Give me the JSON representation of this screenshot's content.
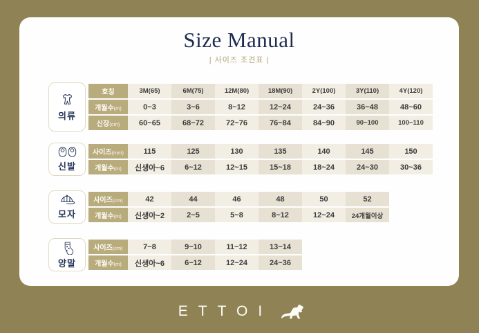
{
  "title": "Size Manual",
  "subtitle": "| 사이즈 조견표 |",
  "brand": {
    "logo_text": "ETTOI",
    "logo_icon": "horse-icon"
  },
  "colors": {
    "background": "#8f8254",
    "card": "#fefefe",
    "header_cell": "#b8ab7c",
    "cell_light": "#f2eee4",
    "cell_dark": "#e7e1d3",
    "title_navy": "#1f2c50",
    "subtitle_gold": "#b2a375"
  },
  "sections": [
    {
      "id": "clothing",
      "label": "의류",
      "icon": "onesie-icon",
      "rows": [
        {
          "header": "호칭",
          "unit": "",
          "values": [
            "3M(65)",
            "6M(75)",
            "12M(80)",
            "18M(90)",
            "2Y(100)",
            "3Y(110)",
            "4Y(120)"
          ]
        },
        {
          "header": "개월수",
          "unit": "(m)",
          "values": [
            "0~3",
            "3~6",
            "8~12",
            "12~24",
            "24~36",
            "36~48",
            "48~60"
          ]
        },
        {
          "header": "신장",
          "unit": "(cm)",
          "values": [
            "60~65",
            "68~72",
            "72~76",
            "76~84",
            "84~90",
            "90~100",
            "100~110"
          ]
        }
      ]
    },
    {
      "id": "shoes",
      "label": "신발",
      "icon": "baby-shoes-icon",
      "rows": [
        {
          "header": "사이즈",
          "unit": "(mm)",
          "values": [
            "115",
            "125",
            "130",
            "135",
            "140",
            "145",
            "150"
          ]
        },
        {
          "header": "개월수",
          "unit": "(m)",
          "values": [
            "신생아~6",
            "6~12",
            "12~15",
            "15~18",
            "18~24",
            "24~30",
            "30~36"
          ]
        }
      ]
    },
    {
      "id": "hats",
      "label": "모자",
      "icon": "cap-icon",
      "rows": [
        {
          "header": "사이즈",
          "unit": "(cm)",
          "values": [
            "42",
            "44",
            "46",
            "48",
            "50",
            "52"
          ]
        },
        {
          "header": "개월수",
          "unit": "(m)",
          "values": [
            "신생아~2",
            "2~5",
            "5~8",
            "8~12",
            "12~24",
            "24개월이상"
          ]
        }
      ]
    },
    {
      "id": "socks",
      "label": "양말",
      "icon": "sock-icon",
      "rows": [
        {
          "header": "사이즈",
          "unit": "(cm)",
          "values": [
            "7~8",
            "9~10",
            "11~12",
            "13~14"
          ]
        },
        {
          "header": "개월수",
          "unit": "(m)",
          "values": [
            "신생아~6",
            "6~12",
            "12~24",
            "24~36"
          ]
        }
      ]
    }
  ]
}
